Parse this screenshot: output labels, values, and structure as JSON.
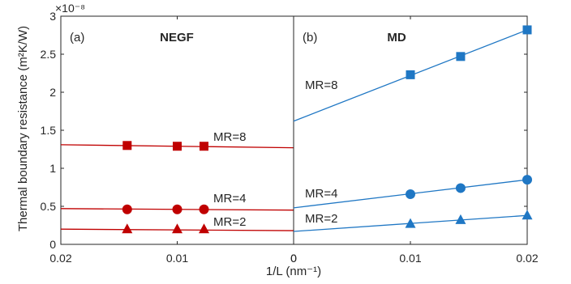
{
  "chart_data": [
    {
      "type": "scatter",
      "panel_label": "(a)",
      "title": "NEGF",
      "xlabel": "1/L (nm⁻¹)",
      "ylabel": "Thermal boundary resistance (m²K/W)",
      "y_exponent": "×10⁻⁸",
      "xlim": [
        0.02,
        0
      ],
      "x_reversed": true,
      "ylim": [
        0,
        3
      ],
      "xticks": [
        0.02,
        0.01,
        0
      ],
      "xticklabels": [
        "0.02",
        "0.01",
        "0"
      ],
      "yticks": [
        0,
        0.5,
        1,
        1.5,
        2,
        2.5,
        3
      ],
      "yticklabels": [
        "0",
        "0.5",
        "1",
        "1.5",
        "2",
        "2.5",
        "3"
      ],
      "grid": false,
      "color": "#c00000",
      "series": [
        {
          "name": "MR=8",
          "marker": "square",
          "x": [
            0.0143,
            0.01,
            0.0077
          ],
          "y": [
            1.3,
            1.29,
            1.29
          ],
          "fit": {
            "x": [
              0.02,
              0
            ],
            "y": [
              1.31,
              1.27
            ]
          }
        },
        {
          "name": "MR=4",
          "marker": "circle",
          "x": [
            0.0143,
            0.01,
            0.0077
          ],
          "y": [
            0.46,
            0.46,
            0.46
          ],
          "fit": {
            "x": [
              0.02,
              0
            ],
            "y": [
              0.47,
              0.45
            ]
          }
        },
        {
          "name": "MR=2",
          "marker": "triangle",
          "x": [
            0.0143,
            0.01,
            0.0077
          ],
          "y": [
            0.2,
            0.2,
            0.2
          ],
          "fit": {
            "x": [
              0.02,
              0
            ],
            "y": [
              0.2,
              0.18
            ]
          }
        }
      ]
    },
    {
      "type": "scatter",
      "panel_label": "(b)",
      "title": "MD",
      "xlabel": "1/L (nm⁻¹)",
      "xlim": [
        0,
        0.02
      ],
      "ylim": [
        0,
        3
      ],
      "xticks": [
        0,
        0.01,
        0.02
      ],
      "xticklabels": [
        "0",
        "0.01",
        "0.02"
      ],
      "grid": false,
      "color": "#1f77c4",
      "series": [
        {
          "name": "MR=8",
          "marker": "square",
          "x": [
            0.01,
            0.0143,
            0.02
          ],
          "y": [
            2.23,
            2.47,
            2.82
          ],
          "fit": {
            "x": [
              0,
              0.02
            ],
            "y": [
              1.62,
              2.82
            ]
          }
        },
        {
          "name": "MR=4",
          "marker": "circle",
          "x": [
            0.01,
            0.0143,
            0.02
          ],
          "y": [
            0.66,
            0.74,
            0.85
          ],
          "fit": {
            "x": [
              0,
              0.02
            ],
            "y": [
              0.48,
              0.85
            ]
          }
        },
        {
          "name": "MR=2",
          "marker": "triangle",
          "x": [
            0.01,
            0.0143,
            0.02
          ],
          "y": [
            0.27,
            0.32,
            0.38
          ],
          "fit": {
            "x": [
              0,
              0.02
            ],
            "y": [
              0.17,
              0.38
            ]
          }
        }
      ]
    }
  ]
}
